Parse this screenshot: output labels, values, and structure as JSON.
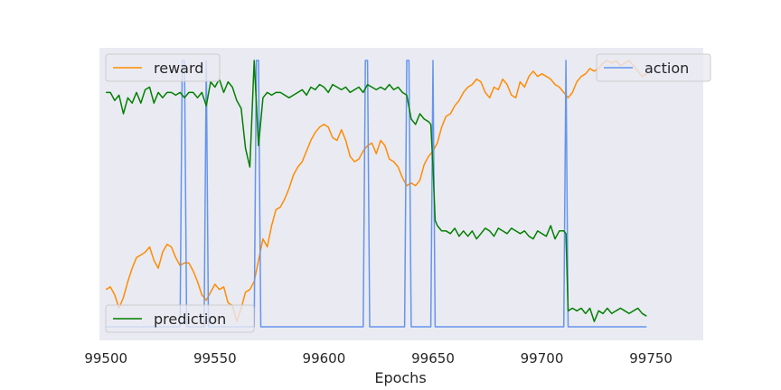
{
  "chart_data": {
    "type": "line",
    "title": "",
    "xlabel": "Epochs",
    "ylabel": "",
    "xlim": [
      99497,
      99774
    ],
    "ylim": [
      0,
      1
    ],
    "xticks": [
      99500,
      99550,
      99600,
      99650,
      99700,
      99750
    ],
    "grid": false,
    "colors": {
      "reward": "#ff8c00",
      "action": "#6495ed",
      "prediction": "#008000",
      "plot_bg": "#eaeaf2"
    },
    "legends": [
      {
        "series": "reward",
        "position": "upper-left"
      },
      {
        "series": "action",
        "position": "upper-right"
      },
      {
        "series": "prediction",
        "position": "lower-left"
      }
    ],
    "series": [
      {
        "name": "reward",
        "x": [
          99500,
          99502,
          99504,
          99506,
          99508,
          99510,
          99512,
          99514,
          99516,
          99518,
          99520,
          99522,
          99524,
          99526,
          99528,
          99530,
          99532,
          99534,
          99536,
          99538,
          99540,
          99542,
          99544,
          99546,
          99548,
          99550,
          99552,
          99554,
          99556,
          99558,
          99560,
          99562,
          99564,
          99566,
          99568,
          99570,
          99572,
          99574,
          99576,
          99578,
          99580,
          99582,
          99584,
          99586,
          99588,
          99590,
          99592,
          99594,
          99596,
          99598,
          99600,
          99602,
          99604,
          99606,
          99608,
          99610,
          99612,
          99614,
          99616,
          99618,
          99620,
          99622,
          99624,
          99626,
          99628,
          99630,
          99632,
          99634,
          99636,
          99638,
          99640,
          99642,
          99644,
          99646,
          99648,
          99650,
          99652,
          99654,
          99656,
          99658,
          99660,
          99662,
          99664,
          99666,
          99668,
          99670,
          99672,
          99674,
          99676,
          99678,
          99680,
          99682,
          99684,
          99686,
          99688,
          99690,
          99692,
          99694,
          99696,
          99698,
          99700,
          99702,
          99704,
          99706,
          99708,
          99710,
          99712,
          99714,
          99716,
          99718,
          99720,
          99722,
          99724,
          99726,
          99728,
          99730,
          99732,
          99734,
          99736,
          99738,
          99740,
          99742,
          99744,
          99746,
          99748
        ],
        "y": [
          0.14,
          0.15,
          0.12,
          0.07,
          0.11,
          0.17,
          0.22,
          0.26,
          0.27,
          0.28,
          0.3,
          0.25,
          0.22,
          0.28,
          0.31,
          0.3,
          0.26,
          0.23,
          0.24,
          0.24,
          0.21,
          0.17,
          0.12,
          0.1,
          0.13,
          0.16,
          0.14,
          0.15,
          0.09,
          0.08,
          0.02,
          0.07,
          0.13,
          0.14,
          0.17,
          0.25,
          0.33,
          0.3,
          0.38,
          0.44,
          0.45,
          0.48,
          0.52,
          0.57,
          0.6,
          0.62,
          0.66,
          0.7,
          0.73,
          0.75,
          0.76,
          0.75,
          0.71,
          0.7,
          0.74,
          0.7,
          0.64,
          0.62,
          0.63,
          0.66,
          0.68,
          0.69,
          0.65,
          0.7,
          0.68,
          0.63,
          0.62,
          0.6,
          0.56,
          0.53,
          0.54,
          0.53,
          0.55,
          0.61,
          0.64,
          0.66,
          0.69,
          0.75,
          0.79,
          0.8,
          0.83,
          0.85,
          0.88,
          0.9,
          0.91,
          0.93,
          0.92,
          0.88,
          0.86,
          0.9,
          0.89,
          0.93,
          0.91,
          0.87,
          0.86,
          0.92,
          0.9,
          0.94,
          0.96,
          0.94,
          0.95,
          0.94,
          0.93,
          0.91,
          0.9,
          0.88,
          0.86,
          0.88,
          0.92,
          0.94,
          0.95,
          0.97,
          0.96,
          0.97,
          0.99,
          1.0,
          0.99,
          1.0,
          0.98,
          0.99,
          1.0,
          0.98,
          0.96,
          0.94,
          0.95
        ]
      },
      {
        "name": "action",
        "x": [
          99500,
          99534,
          99535,
          99536,
          99537,
          99545,
          99546,
          99547,
          99568,
          99569,
          99570,
          99571,
          99618,
          99619,
          99620,
          99621,
          99637,
          99638,
          99639,
          99640,
          99649,
          99650,
          99651,
          99710,
          99711,
          99712,
          99748
        ],
        "y": [
          0,
          0,
          1,
          1,
          0,
          0,
          1,
          0,
          0,
          1,
          1,
          0,
          0,
          1,
          1,
          0,
          0,
          1,
          1,
          0,
          0,
          1,
          0,
          0,
          1,
          0,
          0
        ]
      },
      {
        "name": "prediction",
        "x": [
          99500,
          99502,
          99504,
          99506,
          99508,
          99510,
          99512,
          99514,
          99516,
          99518,
          99520,
          99522,
          99524,
          99526,
          99528,
          99530,
          99532,
          99534,
          99536,
          99538,
          99540,
          99542,
          99544,
          99546,
          99548,
          99550,
          99552,
          99554,
          99556,
          99558,
          99560,
          99562,
          99564,
          99566,
          99568,
          99570,
          99572,
          99574,
          99576,
          99578,
          99580,
          99582,
          99584,
          99586,
          99588,
          99590,
          99592,
          99594,
          99596,
          99598,
          99600,
          99602,
          99604,
          99606,
          99608,
          99610,
          99612,
          99614,
          99616,
          99618,
          99620,
          99622,
          99624,
          99626,
          99628,
          99630,
          99632,
          99634,
          99636,
          99638,
          99640,
          99642,
          99644,
          99646,
          99648,
          99649,
          99650,
          99651,
          99652,
          99654,
          99656,
          99658,
          99660,
          99662,
          99664,
          99666,
          99668,
          99670,
          99672,
          99674,
          99676,
          99678,
          99680,
          99682,
          99684,
          99686,
          99688,
          99690,
          99692,
          99694,
          99696,
          99698,
          99700,
          99702,
          99704,
          99706,
          99708,
          99710,
          99711,
          99712,
          99714,
          99716,
          99718,
          99720,
          99722,
          99724,
          99726,
          99728,
          99730,
          99732,
          99734,
          99736,
          99738,
          99740,
          99742,
          99744,
          99746,
          99748
        ],
        "y": [
          0.88,
          0.88,
          0.85,
          0.87,
          0.8,
          0.86,
          0.84,
          0.88,
          0.84,
          0.89,
          0.9,
          0.84,
          0.88,
          0.86,
          0.88,
          0.88,
          0.87,
          0.88,
          0.86,
          0.88,
          0.88,
          0.86,
          0.88,
          0.83,
          0.92,
          0.9,
          0.93,
          0.88,
          0.92,
          0.9,
          0.85,
          0.82,
          0.67,
          0.6,
          1.0,
          0.68,
          0.86,
          0.88,
          0.87,
          0.88,
          0.88,
          0.87,
          0.86,
          0.87,
          0.88,
          0.89,
          0.87,
          0.9,
          0.89,
          0.91,
          0.9,
          0.88,
          0.91,
          0.9,
          0.89,
          0.9,
          0.88,
          0.89,
          0.9,
          0.88,
          0.91,
          0.9,
          0.89,
          0.9,
          0.89,
          0.91,
          0.89,
          0.9,
          0.88,
          0.87,
          0.78,
          0.76,
          0.8,
          0.78,
          0.77,
          0.76,
          0.6,
          0.4,
          0.38,
          0.36,
          0.36,
          0.35,
          0.37,
          0.34,
          0.36,
          0.34,
          0.36,
          0.33,
          0.35,
          0.37,
          0.36,
          0.34,
          0.37,
          0.36,
          0.35,
          0.37,
          0.36,
          0.35,
          0.36,
          0.34,
          0.33,
          0.36,
          0.35,
          0.34,
          0.38,
          0.33,
          0.36,
          0.36,
          0.35,
          0.06,
          0.07,
          0.06,
          0.07,
          0.05,
          0.07,
          0.02,
          0.06,
          0.05,
          0.07,
          0.05,
          0.06,
          0.07,
          0.06,
          0.05,
          0.06,
          0.07,
          0.05,
          0.04
        ]
      }
    ]
  }
}
